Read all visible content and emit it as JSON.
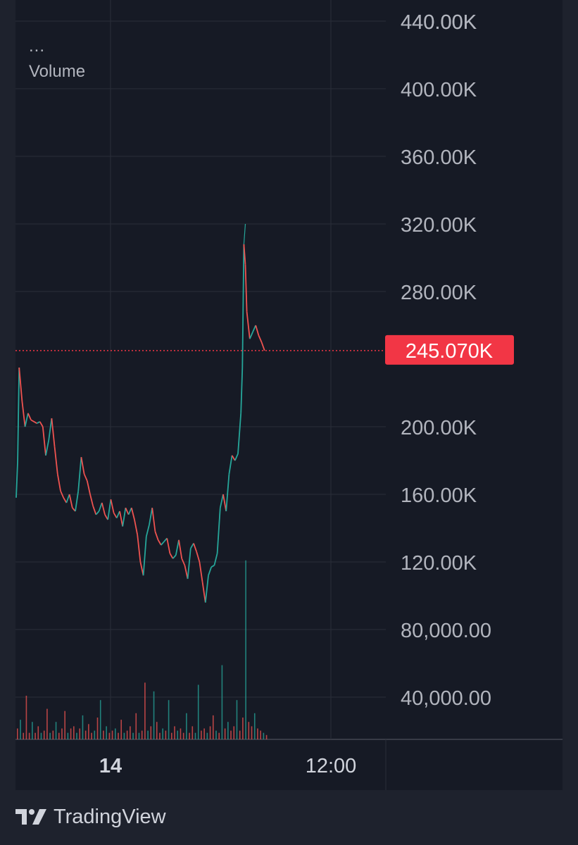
{
  "legend": {
    "dots": "...",
    "volume_label": "Volume"
  },
  "watermark": "TradingView",
  "colors": {
    "up": "#26a69a",
    "down": "#ef5350",
    "price_tag": "#f23645",
    "background": "#161a25",
    "grid": "#2a2e39"
  },
  "chart_data": {
    "type": "candlestick",
    "ylabels": [
      "440.00K",
      "400.00K",
      "360.00K",
      "320.00K",
      "280.00K",
      "200.00K",
      "160.00K",
      "120.00K",
      "80,000.00",
      "40,000.00"
    ],
    "xlabels": [
      "14",
      "12:00"
    ],
    "last_price": 245070,
    "last_price_label": "245.070K",
    "price_path": [
      [
        0,
        158000
      ],
      [
        0.5,
        180000
      ],
      [
        1,
        235000
      ],
      [
        2,
        215000
      ],
      [
        3,
        200000
      ],
      [
        4,
        208000
      ],
      [
        5,
        204000
      ],
      [
        7,
        202000
      ],
      [
        8,
        203000
      ],
      [
        9,
        200000
      ],
      [
        10,
        183000
      ],
      [
        11,
        192000
      ],
      [
        12,
        205000
      ],
      [
        13,
        188000
      ],
      [
        14,
        172000
      ],
      [
        15,
        162000
      ],
      [
        16,
        158000
      ],
      [
        17,
        155000
      ],
      [
        18,
        160000
      ],
      [
        19,
        152000
      ],
      [
        20,
        150000
      ],
      [
        21,
        162000
      ],
      [
        22,
        182000
      ],
      [
        23,
        172000
      ],
      [
        24,
        168000
      ],
      [
        25,
        160000
      ],
      [
        26,
        153000
      ],
      [
        27,
        148000
      ],
      [
        28,
        150000
      ],
      [
        29,
        155000
      ],
      [
        30,
        148000
      ],
      [
        31,
        145000
      ],
      [
        32,
        157000
      ],
      [
        33,
        149000
      ],
      [
        34,
        146000
      ],
      [
        35,
        150000
      ],
      [
        36,
        141000
      ],
      [
        37,
        152000
      ],
      [
        38,
        148000
      ],
      [
        39,
        152000
      ],
      [
        40,
        145000
      ],
      [
        41,
        136000
      ],
      [
        42,
        120000
      ],
      [
        43,
        112000
      ],
      [
        44,
        135000
      ],
      [
        45,
        142000
      ],
      [
        46,
        152000
      ],
      [
        47,
        138000
      ],
      [
        48,
        133000
      ],
      [
        49,
        130000
      ],
      [
        50,
        132000
      ],
      [
        51,
        134000
      ],
      [
        52,
        125000
      ],
      [
        53,
        122000
      ],
      [
        54,
        124000
      ],
      [
        55,
        133000
      ],
      [
        56,
        122000
      ],
      [
        57,
        118000
      ],
      [
        58,
        110000
      ],
      [
        59,
        128000
      ],
      [
        60,
        131000
      ],
      [
        61,
        126000
      ],
      [
        62,
        120000
      ],
      [
        63,
        108000
      ],
      [
        64,
        96000
      ],
      [
        65,
        112000
      ],
      [
        66,
        117000
      ],
      [
        67,
        118000
      ],
      [
        68,
        125000
      ],
      [
        69,
        152000
      ],
      [
        70,
        160000
      ],
      [
        71,
        150000
      ],
      [
        72,
        172000
      ],
      [
        73,
        183000
      ],
      [
        74,
        180000
      ],
      [
        75,
        184000
      ],
      [
        76,
        208000
      ],
      [
        76.5,
        235000
      ],
      [
        77,
        308000
      ],
      [
        77.5,
        296000
      ],
      [
        78,
        268000
      ],
      [
        79,
        252000
      ],
      [
        80,
        256000
      ],
      [
        81,
        260000
      ],
      [
        82,
        254000
      ],
      [
        83,
        250000
      ],
      [
        84,
        245070
      ]
    ],
    "volume": [
      {
        "v": 5,
        "up": false
      },
      {
        "v": 9,
        "up": true
      },
      {
        "v": 3,
        "up": false
      },
      {
        "v": 20,
        "up": false
      },
      {
        "v": 3,
        "up": false
      },
      {
        "v": 8,
        "up": true
      },
      {
        "v": 3,
        "up": false
      },
      {
        "v": 6,
        "up": false
      },
      {
        "v": 3,
        "up": true
      },
      {
        "v": 4,
        "up": false
      },
      {
        "v": 14,
        "up": false
      },
      {
        "v": 3,
        "up": true
      },
      {
        "v": 4,
        "up": false
      },
      {
        "v": 8,
        "up": true
      },
      {
        "v": 3,
        "up": false
      },
      {
        "v": 5,
        "up": false
      },
      {
        "v": 13,
        "up": false
      },
      {
        "v": 3,
        "up": true
      },
      {
        "v": 5,
        "up": false
      },
      {
        "v": 6,
        "up": false
      },
      {
        "v": 3,
        "up": true
      },
      {
        "v": 5,
        "up": false
      },
      {
        "v": 11,
        "up": true
      },
      {
        "v": 4,
        "up": false
      },
      {
        "v": 7,
        "up": false
      },
      {
        "v": 3,
        "up": false
      },
      {
        "v": 4,
        "up": true
      },
      {
        "v": 10,
        "up": false
      },
      {
        "v": 18,
        "up": true
      },
      {
        "v": 4,
        "up": false
      },
      {
        "v": 6,
        "up": true
      },
      {
        "v": 3,
        "up": false
      },
      {
        "v": 4,
        "up": false
      },
      {
        "v": 5,
        "up": true
      },
      {
        "v": 3,
        "up": false
      },
      {
        "v": 9,
        "up": false
      },
      {
        "v": 3,
        "up": true
      },
      {
        "v": 4,
        "up": false
      },
      {
        "v": 6,
        "up": false
      },
      {
        "v": 3,
        "up": true
      },
      {
        "v": 12,
        "up": false
      },
      {
        "v": 3,
        "up": true
      },
      {
        "v": 4,
        "up": false
      },
      {
        "v": 26,
        "up": false
      },
      {
        "v": 4,
        "up": true
      },
      {
        "v": 6,
        "up": false
      },
      {
        "v": 22,
        "up": true
      },
      {
        "v": 8,
        "up": false
      },
      {
        "v": 3,
        "up": false
      },
      {
        "v": 5,
        "up": true
      },
      {
        "v": 4,
        "up": false
      },
      {
        "v": 18,
        "up": true
      },
      {
        "v": 3,
        "up": false
      },
      {
        "v": 6,
        "up": false
      },
      {
        "v": 4,
        "up": true
      },
      {
        "v": 5,
        "up": false
      },
      {
        "v": 3,
        "up": false
      },
      {
        "v": 12,
        "up": true
      },
      {
        "v": 3,
        "up": false
      },
      {
        "v": 6,
        "up": false
      },
      {
        "v": 3,
        "up": true
      },
      {
        "v": 25,
        "up": true
      },
      {
        "v": 4,
        "up": false
      },
      {
        "v": 5,
        "up": false
      },
      {
        "v": 3,
        "up": true
      },
      {
        "v": 6,
        "up": false
      },
      {
        "v": 11,
        "up": false
      },
      {
        "v": 4,
        "up": true
      },
      {
        "v": 3,
        "up": false
      },
      {
        "v": 34,
        "up": true
      },
      {
        "v": 5,
        "up": false
      },
      {
        "v": 8,
        "up": true
      },
      {
        "v": 4,
        "up": false
      },
      {
        "v": 6,
        "up": false
      },
      {
        "v": 18,
        "up": true
      },
      {
        "v": 4,
        "up": false
      },
      {
        "v": 10,
        "up": false
      },
      {
        "v": 82,
        "up": true
      },
      {
        "v": 8,
        "up": false
      },
      {
        "v": 6,
        "up": false
      },
      {
        "v": 12,
        "up": true
      },
      {
        "v": 5,
        "up": false
      },
      {
        "v": 4,
        "up": false
      },
      {
        "v": 3,
        "up": true
      },
      {
        "v": 2,
        "up": false
      }
    ]
  }
}
